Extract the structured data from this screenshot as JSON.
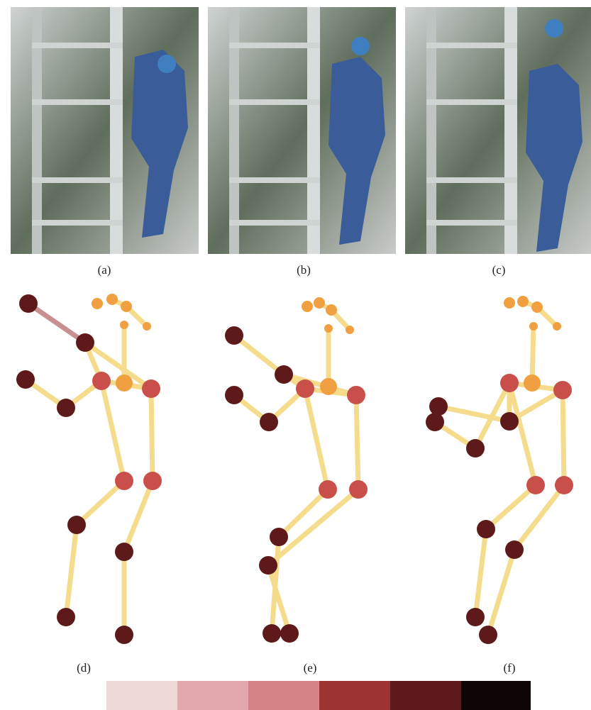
{
  "panels": {
    "photos": [
      "(a)",
      "(b)",
      "(c)"
    ],
    "skeletons": [
      "(d)",
      "(e)",
      "(f)"
    ]
  }
}
